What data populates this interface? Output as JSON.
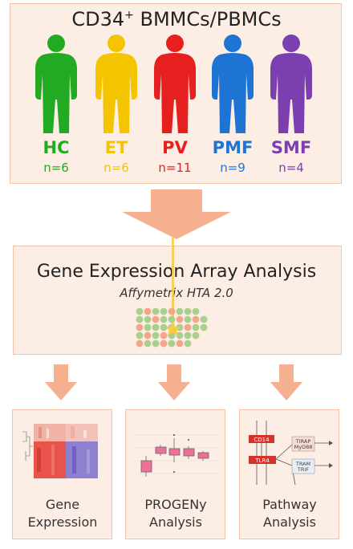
{
  "header": {
    "title_main": "CD34",
    "title_sup": "+",
    "title_rest": " BMMCs/PBMCs"
  },
  "groups": [
    {
      "abbr": "HC",
      "n": "n=6",
      "color": "#22aa22"
    },
    {
      "abbr": "ET",
      "n": "n=6",
      "color": "#f5c400"
    },
    {
      "abbr": "PV",
      "n": "n=11",
      "color": "#e61f1f"
    },
    {
      "abbr": "PMF",
      "n": "n=9",
      "color": "#1e74d2"
    },
    {
      "abbr": "SMF",
      "n": "n=4",
      "color": "#7b3fb0"
    }
  ],
  "analysis": {
    "title": "Gene Expression Array Analysis",
    "platform": "Affymetrix HTA 2.0"
  },
  "outputs": [
    {
      "line1": "Gene",
      "line2": "Expression"
    },
    {
      "line1": "PROGENy",
      "line2": "Analysis"
    },
    {
      "line1": "Pathway",
      "line2": "Analysis"
    }
  ],
  "pathway": {
    "labels": [
      "CD14",
      "TLR4",
      "TIRAP",
      "MyD88",
      "TRAM",
      "TRIF"
    ]
  },
  "colors": {
    "box_fill": "#fdeee5",
    "box_border": "#f2c3a8",
    "arrow": "#f4b08f",
    "dot_green": "#a8d08d",
    "dot_red": "#f4a58a",
    "star": "#f7c948"
  }
}
